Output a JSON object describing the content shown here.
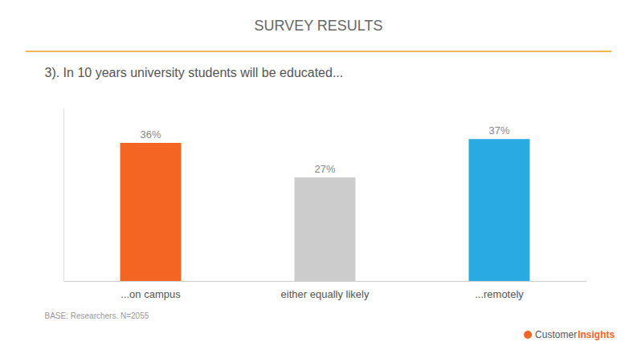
{
  "chart_data": {
    "type": "bar",
    "title": "SURVEY RESULTS",
    "subtitle": "3). In 10 years university students will be educated...",
    "categories": [
      "...on campus",
      "either equally likely",
      "...remotely"
    ],
    "values": [
      36,
      27,
      37
    ],
    "value_labels": [
      "36%",
      "27%",
      "37%"
    ],
    "colors": [
      "#F26522",
      "#CCCCCC",
      "#29ABE2"
    ],
    "ylim": [
      0,
      45
    ],
    "data_labels": true,
    "tick_labels": "x",
    "grid": false,
    "annotations": [
      "BASE: Researchers. N=2055",
      "Customer",
      "Insights"
    ]
  }
}
